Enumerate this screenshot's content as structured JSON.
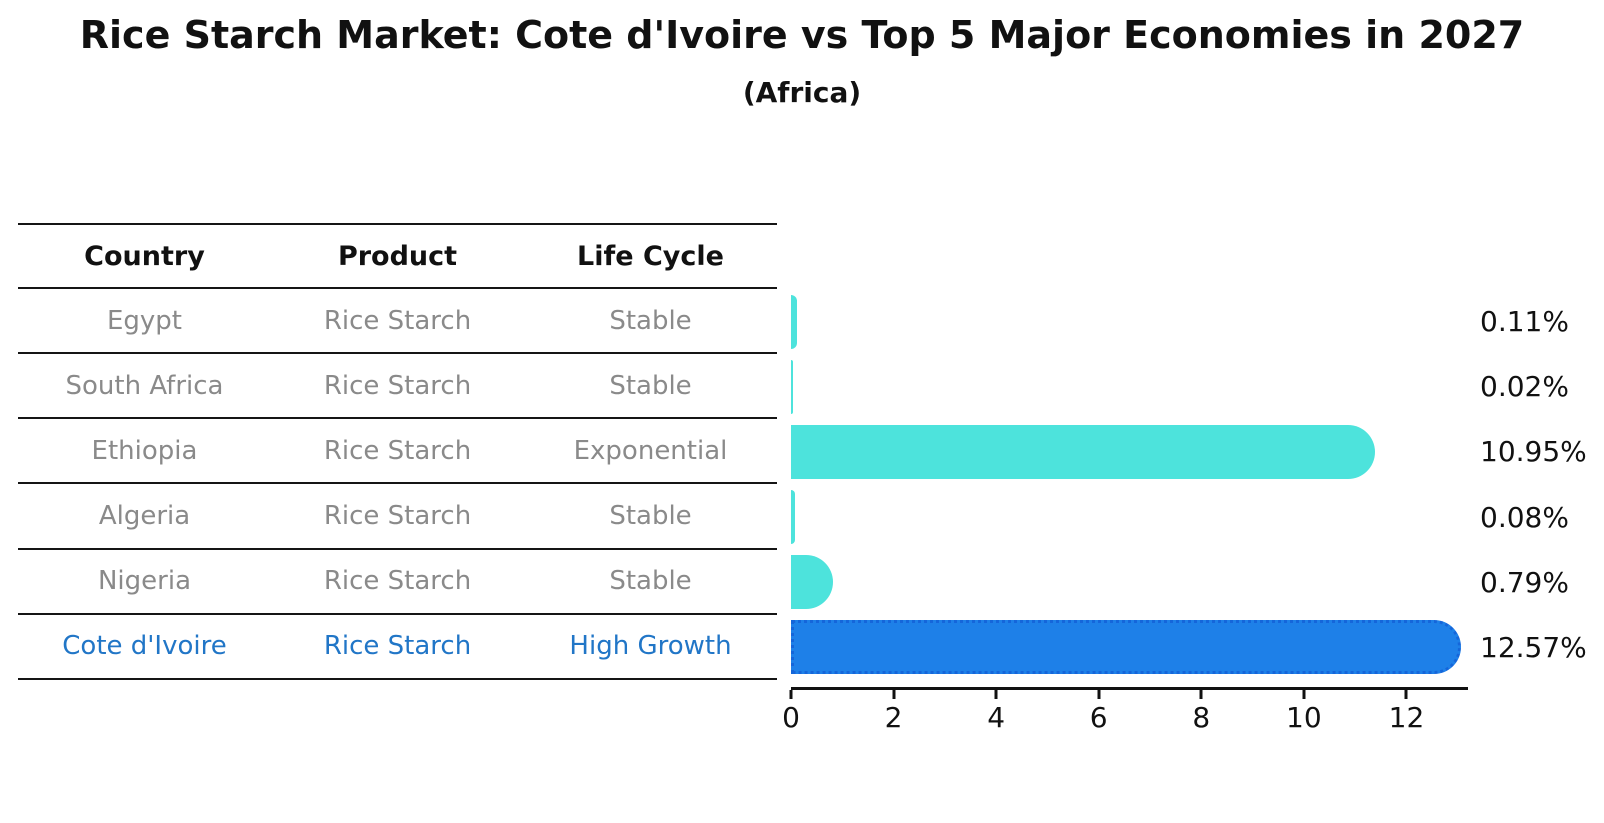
{
  "title": "Rice Starch Market: Cote d'Ivoire vs Top 5 Major Economies in 2027",
  "subtitle": "(Africa)",
  "table": {
    "headers": [
      "Country",
      "Product",
      "Life Cycle"
    ],
    "rows": [
      {
        "country": "Egypt",
        "product": "Rice Starch",
        "life_cycle": "Stable",
        "highlight": false
      },
      {
        "country": "South Africa",
        "product": "Rice Starch",
        "life_cycle": "Stable",
        "highlight": false
      },
      {
        "country": "Ethiopia",
        "product": "Rice Starch",
        "life_cycle": "Exponential",
        "highlight": false
      },
      {
        "country": "Algeria",
        "product": "Rice Starch",
        "life_cycle": "Stable",
        "highlight": false
      },
      {
        "country": "Nigeria",
        "product": "Rice Starch",
        "life_cycle": "Stable",
        "highlight": false
      },
      {
        "country": "Cote d'Ivoire",
        "product": "Rice Starch",
        "life_cycle": "High Growth",
        "highlight": true
      }
    ]
  },
  "chart_data": {
    "type": "bar",
    "orientation": "horizontal",
    "title": "Rice Starch Market: Cote d'Ivoire vs Top 5 Major Economies in 2027",
    "subtitle": "(Africa)",
    "categories": [
      "Egypt",
      "South Africa",
      "Ethiopia",
      "Algeria",
      "Nigeria",
      "Cote d'Ivoire"
    ],
    "values": [
      0.11,
      0.02,
      10.95,
      0.08,
      0.79,
      12.57
    ],
    "value_labels": [
      "0.11%",
      "0.02%",
      "10.95%",
      "0.08%",
      "0.79%",
      "12.57%"
    ],
    "unit": "%",
    "xlabel": "",
    "ylabel": "",
    "xlim": [
      0,
      13.2
    ],
    "xticks": [
      0,
      2,
      4,
      6,
      8,
      10,
      12
    ],
    "grid": false,
    "legend": "none",
    "highlight_index": 5,
    "colors": {
      "bar_default": "#4de3dc",
      "bar_highlight": "#1e80e8",
      "bar_highlight_edge": "#1566da"
    }
  },
  "colors": {
    "background": "#ffffff",
    "title_text": "#111111",
    "table_line": "#151515",
    "table_text": "#8a8a8a",
    "highlight_text": "#2176c7",
    "axis": "#111111"
  }
}
